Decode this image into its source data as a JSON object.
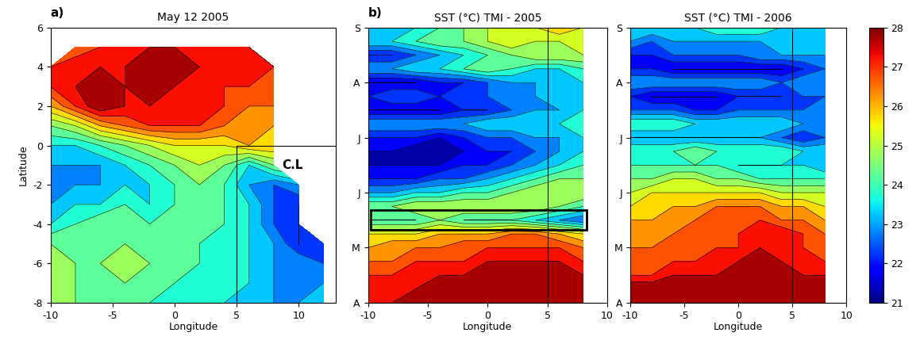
{
  "chart_data": [
    {
      "type": "contour",
      "panel_label": "a)",
      "title": "May 12 2005",
      "x_label": "Longitude",
      "y_label": "Latitude",
      "xlim": [
        -10,
        13
      ],
      "ylim": [
        -8,
        6
      ],
      "xticks": [
        -10,
        -5,
        0,
        5,
        10
      ],
      "yticks": [
        -8,
        -6,
        -4,
        -2,
        0,
        2,
        4,
        6
      ],
      "x": [
        -10,
        -8,
        -6,
        -4,
        -2,
        0,
        2,
        4,
        6,
        8,
        10,
        12
      ],
      "y": [
        -8,
        -7,
        -6,
        -5,
        -4,
        -3,
        -2,
        -1,
        0,
        1,
        2,
        3,
        4,
        5,
        6
      ],
      "cells": [
        [
          25,
          24.5,
          24.5,
          24.5,
          24,
          24,
          24,
          23.5,
          23.5,
          23,
          23,
          23.5
        ],
        [
          25,
          24.5,
          24.5,
          24.5,
          24.5,
          24,
          24,
          24,
          23.5,
          23,
          23,
          23
        ],
        [
          25,
          24.5,
          24.5,
          25,
          24.5,
          24.5,
          24,
          24,
          23.5,
          23,
          23,
          22.5
        ],
        [
          24.5,
          24.5,
          24.5,
          24.5,
          24.5,
          24.5,
          24,
          24,
          23.5,
          23,
          22,
          22.5
        ],
        [
          23.5,
          24,
          24.5,
          24.5,
          24,
          24.5,
          24.5,
          24,
          23.5,
          22.5,
          22,
          null
        ],
        [
          23,
          23.5,
          23.5,
          24,
          23.5,
          24,
          24.5,
          24,
          23.5,
          22.5,
          22,
          null
        ],
        [
          23,
          23,
          23,
          23.5,
          23.5,
          24,
          24.5,
          24,
          23,
          22.5,
          23,
          null
        ],
        [
          23,
          23,
          23,
          23.5,
          24,
          24.5,
          25,
          24.5,
          23.5,
          24.5,
          null,
          null
        ],
        [
          23.5,
          23.5,
          24,
          24.5,
          25,
          25.5,
          25.5,
          25.5,
          26,
          26,
          null,
          null
        ],
        [
          24.5,
          25,
          26,
          26.5,
          27,
          27,
          27,
          26.5,
          26.5,
          26,
          null,
          null
        ],
        [
          26,
          27,
          28,
          27.5,
          27.5,
          27.5,
          27.5,
          27,
          26.5,
          26.5,
          null,
          null
        ],
        [
          27,
          27.5,
          28,
          27.5,
          28,
          27.5,
          27.5,
          27,
          27,
          27,
          null,
          null
        ],
        [
          27,
          27.5,
          27.5,
          27.5,
          28,
          28,
          27.5,
          27.5,
          27.5,
          27,
          null,
          null
        ],
        [
          null,
          26.5,
          27,
          27.5,
          27.5,
          27.5,
          27.5,
          27.5,
          27,
          null,
          null,
          null
        ],
        [
          null,
          null,
          null,
          null,
          null,
          null,
          null,
          null,
          null,
          null,
          null,
          null
        ]
      ],
      "lines": [
        {
          "x": [
            5,
            5
          ],
          "y": [
            0,
            -8
          ]
        },
        {
          "x": [
            5,
            13
          ],
          "y": [
            0,
            0
          ]
        }
      ],
      "annotations": [
        {
          "text": "C.L",
          "x": 9.5,
          "y": -1
        }
      ]
    },
    {
      "type": "contour",
      "panel_label": "b)",
      "title": "SST (°C) TMI - 2005",
      "x_label": "Longitude",
      "xlim": [
        -10,
        10
      ],
      "ylim": [
        0,
        5
      ],
      "xticks": [
        -10,
        -5,
        0,
        5,
        10
      ],
      "yticks": [
        {
          "value": 0,
          "label": "A"
        },
        {
          "value": 1,
          "label": "M"
        },
        {
          "value": 2,
          "label": "J"
        },
        {
          "value": 3,
          "label": "J"
        },
        {
          "value": 4,
          "label": "A"
        },
        {
          "value": 5,
          "label": "S"
        }
      ],
      "x": [
        -10,
        -8,
        -6,
        -4,
        -2,
        0,
        2,
        4,
        6,
        8
      ],
      "y": [
        0,
        0.25,
        0.5,
        0.75,
        1,
        1.25,
        1.5,
        1.75,
        2,
        2.25,
        2.5,
        2.75,
        3,
        3.25,
        3.5,
        3.75,
        4,
        4.25,
        4.5,
        4.75,
        5
      ],
      "cells": [
        [
          27.5,
          27.5,
          28,
          28,
          28,
          28,
          28,
          28,
          28,
          28
        ],
        [
          27.5,
          27.5,
          27.5,
          28,
          28,
          28,
          28,
          28,
          28,
          28
        ],
        [
          27,
          27,
          27.5,
          27.5,
          27.5,
          28,
          28,
          28,
          28,
          27.5
        ],
        [
          26.5,
          26.5,
          27,
          27,
          27,
          27.5,
          27.5,
          27.5,
          27.5,
          27
        ],
        [
          26,
          26.5,
          26.5,
          26.5,
          27,
          27,
          27,
          27,
          27,
          26.5
        ],
        [
          25.5,
          25.5,
          25.5,
          26,
          26,
          26,
          26.5,
          26.5,
          26,
          25.5
        ],
        [
          24,
          24,
          24,
          24.5,
          24,
          24,
          24,
          23.5,
          23,
          22.5
        ],
        [
          24.5,
          24.5,
          25,
          25,
          25,
          25,
          25,
          25,
          24.5,
          24
        ],
        [
          23,
          23,
          23.5,
          23.5,
          24,
          24,
          24.5,
          25,
          25,
          25
        ],
        [
          22,
          22,
          22,
          22.5,
          22.5,
          23,
          23.5,
          24,
          24.5,
          24.5
        ],
        [
          21.5,
          21.5,
          21.5,
          21.5,
          22,
          22,
          22.5,
          23,
          23.5,
          24
        ],
        [
          21.5,
          21.5,
          21,
          21.5,
          21.5,
          22,
          22,
          22.5,
          23,
          23.5
        ],
        [
          22,
          22,
          22,
          21.5,
          22,
          22.5,
          22.5,
          23,
          23,
          23.5
        ],
        [
          23,
          23,
          23,
          23,
          23,
          23.5,
          23.5,
          23.5,
          23.5,
          24
        ],
        [
          21.5,
          21.5,
          21.5,
          21.5,
          22,
          22,
          22.5,
          23,
          23,
          23.5
        ],
        [
          22,
          22.5,
          22.5,
          22,
          22.5,
          22.5,
          23,
          23,
          23.5,
          23.5
        ],
        [
          21.5,
          21.5,
          21.5,
          22,
          22,
          22.5,
          23,
          23,
          23.5,
          23.5
        ],
        [
          23,
          23,
          23.5,
          23.5,
          24,
          24.5,
          24,
          23.5,
          23.5,
          24
        ],
        [
          22,
          22,
          22.5,
          23,
          23.5,
          24,
          24.5,
          25,
          25,
          25
        ],
        [
          23.5,
          23.5,
          24,
          24.5,
          24.5,
          25,
          25.5,
          25,
          25,
          25.5
        ],
        [
          23,
          23,
          23.5,
          24,
          24.5,
          25,
          25.5,
          25.5,
          26,
          25.5
        ]
      ],
      "lines": [
        {
          "x": [
            5,
            5
          ],
          "y": [
            0,
            5
          ]
        }
      ],
      "box": {
        "x": [
          -9.8,
          8.3
        ],
        "y": [
          1.33,
          1.68
        ]
      }
    },
    {
      "type": "contour",
      "title": "SST (°C) TMI - 2006",
      "x_label": "Longitude",
      "xlim": [
        -10,
        10
      ],
      "ylim": [
        0,
        5
      ],
      "xticks": [
        -10,
        -5,
        0,
        5,
        10
      ],
      "yticks": [
        {
          "value": 0,
          "label": "A"
        },
        {
          "value": 1,
          "label": "M"
        },
        {
          "value": 2,
          "label": "J"
        },
        {
          "value": 3,
          "label": "J"
        },
        {
          "value": 4,
          "label": "A"
        },
        {
          "value": 5,
          "label": "S"
        }
      ],
      "x": [
        -10,
        -8,
        -6,
        -4,
        -2,
        0,
        2,
        4,
        6,
        8
      ],
      "y": [
        0,
        0.25,
        0.5,
        0.75,
        1,
        1.25,
        1.5,
        1.75,
        2,
        2.25,
        2.5,
        2.75,
        3,
        3.25,
        3.5,
        3.75,
        4,
        4.25,
        4.5,
        4.75,
        5
      ],
      "cells": [
        [
          28,
          28,
          28,
          28,
          28,
          28,
          28,
          28,
          28,
          28
        ],
        [
          28,
          28,
          28,
          28,
          28,
          28,
          28,
          28,
          28,
          28
        ],
        [
          27,
          27,
          27.5,
          27.5,
          27.5,
          28,
          28,
          28,
          27.5,
          27.5
        ],
        [
          27,
          27,
          27,
          27,
          27.5,
          27.5,
          28,
          27.5,
          27.5,
          27
        ],
        [
          26.5,
          26.5,
          27,
          27,
          27,
          27,
          27.5,
          27.5,
          27,
          27
        ],
        [
          26.5,
          26.5,
          26.5,
          27,
          27,
          27,
          27.5,
          27.5,
          27,
          26.5
        ],
        [
          26,
          26,
          26.5,
          26.5,
          27,
          27,
          27,
          26.5,
          26.5,
          26
        ],
        [
          25.5,
          26,
          26,
          26,
          26.5,
          26.5,
          26.5,
          26,
          26,
          25.5
        ],
        [
          25,
          25.5,
          25.5,
          25.5,
          25.5,
          25.5,
          25.5,
          25,
          25,
          25
        ],
        [
          24.5,
          24.5,
          25,
          25,
          24.5,
          24.5,
          24,
          24,
          24,
          24
        ],
        [
          24,
          24,
          24,
          24,
          24,
          23.5,
          23.5,
          23.5,
          23.5,
          23
        ],
        [
          24,
          24,
          24,
          24.5,
          24,
          24,
          24,
          24,
          23.5,
          23.5
        ],
        [
          23,
          23,
          23,
          23,
          23,
          23,
          23,
          22.5,
          22,
          22.5
        ],
        [
          24,
          24,
          24,
          23.5,
          23.5,
          23.5,
          23.5,
          23.5,
          23,
          23
        ],
        [
          22.5,
          22.5,
          22.5,
          22,
          22,
          22.5,
          22.5,
          22.5,
          22.5,
          23
        ],
        [
          22,
          21.5,
          21.5,
          21.5,
          21.5,
          22,
          22,
          22,
          22.5,
          22.5
        ],
        [
          23,
          23,
          23,
          23,
          23,
          23,
          23,
          22.5,
          23,
          23
        ],
        [
          22,
          22,
          21.5,
          21.5,
          21.5,
          21.5,
          21.5,
          21.5,
          22,
          22.5
        ],
        [
          22,
          22,
          22.5,
          22.5,
          22.5,
          22.5,
          23,
          23,
          23,
          23
        ],
        [
          23,
          22.5,
          23,
          23,
          23,
          23,
          23,
          23.5,
          23.5,
          23.5
        ],
        [
          23.5,
          23.5,
          23.5,
          23.5,
          24,
          24,
          24,
          23.5,
          23.5,
          23.5
        ]
      ],
      "lines": [
        {
          "x": [
            5,
            5
          ],
          "y": [
            0,
            5
          ]
        }
      ],
      "colorbar": {
        "range": [
          21,
          28
        ],
        "ticks": [
          21,
          22,
          23,
          24,
          25,
          26,
          27,
          28
        ],
        "contour_interval": 0.5
      }
    }
  ]
}
